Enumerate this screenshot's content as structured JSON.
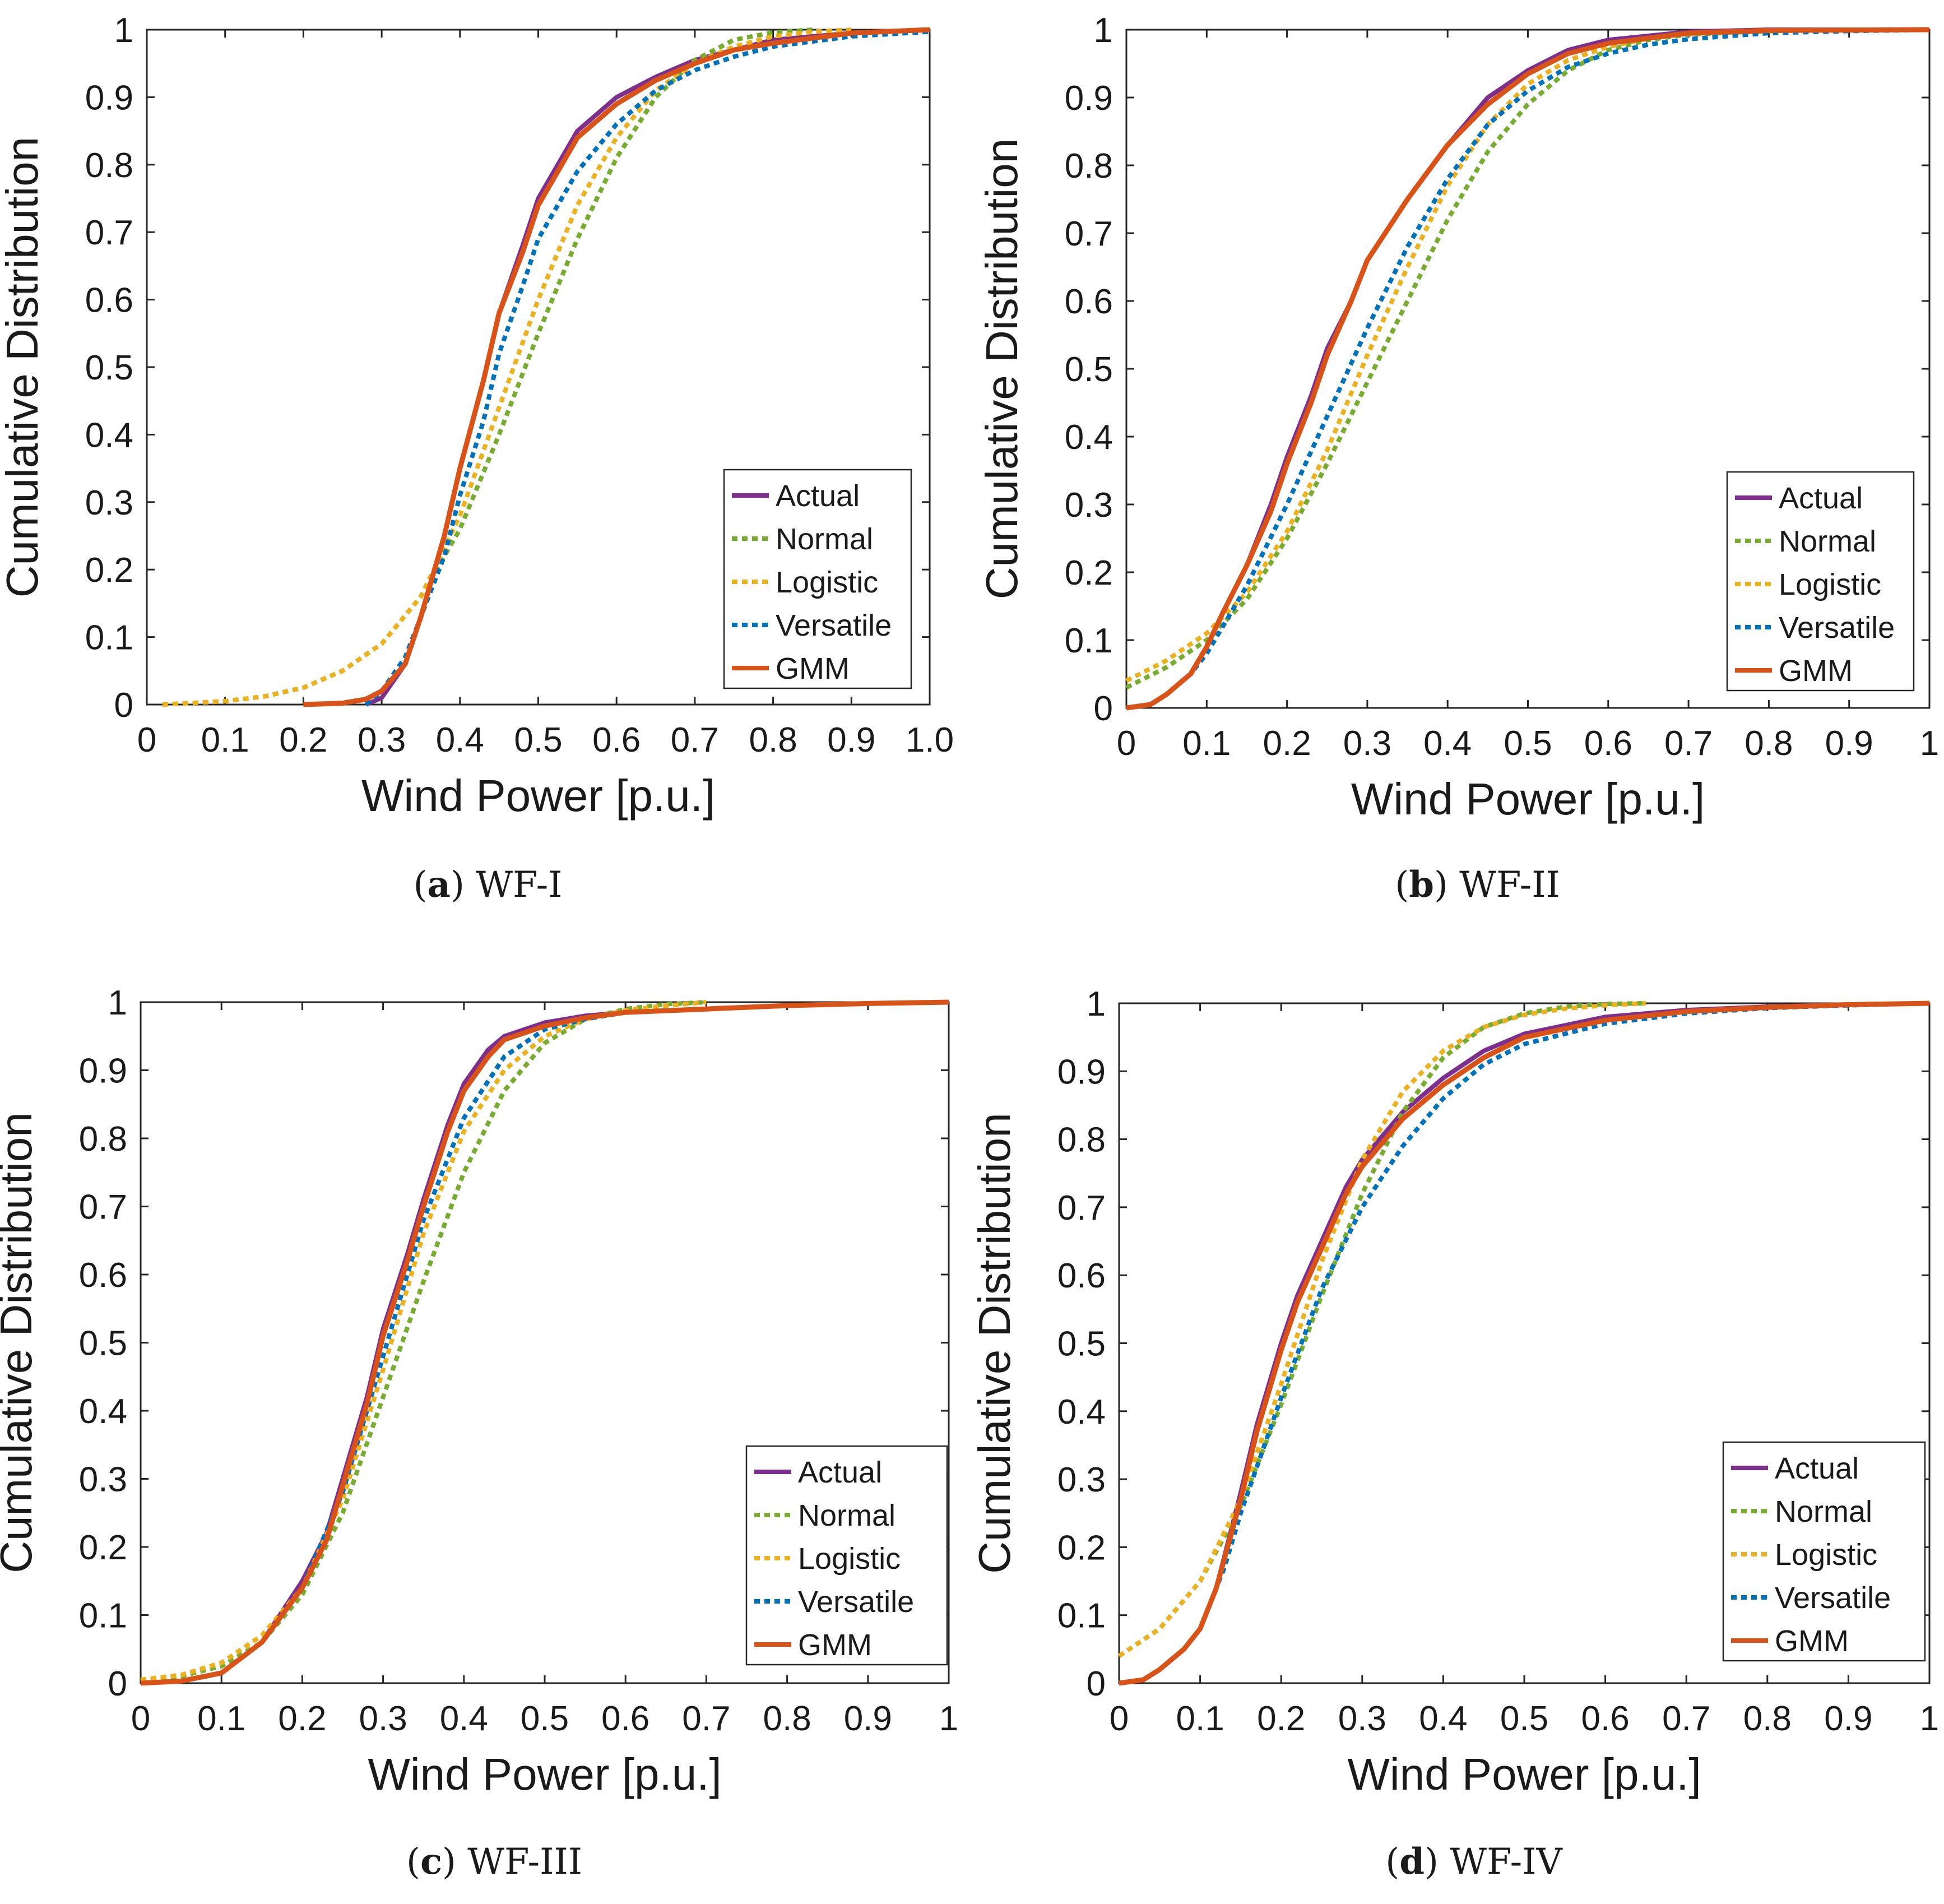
{
  "colors": {
    "Actual": "#7E2F8E",
    "Normal": "#77AC30",
    "Logistic": "#EDB120",
    "Versatile": "#0072BD",
    "GMM": "#D95319"
  },
  "chart_data": [
    {
      "type": "line",
      "title": "",
      "caption_letter": "(a)",
      "caption_name": "WF-I",
      "xlabel": "Wind Power [p.u.]",
      "ylabel": "Cumulative Distribution",
      "xlim": [
        0,
        1
      ],
      "ylim": [
        0,
        1
      ],
      "xticks": [
        "0",
        "0.1",
        "0.2",
        "0.3",
        "0.4",
        "0.5",
        "0.6",
        "0.7",
        "0.8",
        "0.9",
        "1.0"
      ],
      "yticks": [
        "0",
        "0.1",
        "0.2",
        "0.3",
        "0.4",
        "0.5",
        "0.6",
        "0.7",
        "0.8",
        "0.9",
        "1"
      ],
      "legend_position": "bottom-right",
      "grid": false,
      "series": [
        {
          "name": "Actual",
          "style": "solid",
          "x": [
            0.28,
            0.3,
            0.33,
            0.35,
            0.38,
            0.4,
            0.43,
            0.45,
            0.48,
            0.5,
            0.53,
            0.55,
            0.58,
            0.6,
            0.65,
            0.7,
            0.75,
            0.8,
            0.9,
            1.0
          ],
          "y": [
            0.0,
            0.01,
            0.06,
            0.13,
            0.25,
            0.35,
            0.48,
            0.58,
            0.68,
            0.75,
            0.81,
            0.85,
            0.88,
            0.9,
            0.93,
            0.955,
            0.97,
            0.985,
            0.995,
            1.0
          ]
        },
        {
          "name": "Normal",
          "style": "dotted",
          "x": [
            0.02,
            0.1,
            0.15,
            0.2,
            0.25,
            0.3,
            0.35,
            0.4,
            0.45,
            0.5,
            0.55,
            0.6,
            0.65,
            0.7,
            0.75,
            0.8,
            0.85
          ],
          "y": [
            0.0,
            0.005,
            0.012,
            0.025,
            0.05,
            0.09,
            0.16,
            0.26,
            0.4,
            0.55,
            0.69,
            0.81,
            0.9,
            0.955,
            0.985,
            0.996,
            1.0
          ]
        },
        {
          "name": "Logistic",
          "style": "dotted",
          "x": [
            0.02,
            0.1,
            0.15,
            0.2,
            0.25,
            0.3,
            0.35,
            0.4,
            0.45,
            0.5,
            0.55,
            0.6,
            0.65,
            0.7,
            0.75,
            0.8,
            0.85,
            0.9
          ],
          "y": [
            0.0,
            0.005,
            0.012,
            0.025,
            0.05,
            0.09,
            0.16,
            0.28,
            0.44,
            0.6,
            0.74,
            0.84,
            0.91,
            0.95,
            0.975,
            0.99,
            0.997,
            1.0
          ]
        },
        {
          "name": "Versatile",
          "style": "dotted",
          "x": [
            0.28,
            0.3,
            0.33,
            0.35,
            0.38,
            0.4,
            0.43,
            0.45,
            0.48,
            0.5,
            0.55,
            0.6,
            0.65,
            0.7,
            0.75,
            0.8,
            0.9,
            1.0
          ],
          "y": [
            0.0,
            0.02,
            0.07,
            0.13,
            0.22,
            0.31,
            0.42,
            0.52,
            0.62,
            0.69,
            0.79,
            0.86,
            0.91,
            0.94,
            0.96,
            0.975,
            0.99,
            0.997
          ]
        },
        {
          "name": "GMM",
          "style": "solid",
          "x": [
            0.2,
            0.25,
            0.28,
            0.3,
            0.33,
            0.35,
            0.38,
            0.4,
            0.43,
            0.45,
            0.48,
            0.5,
            0.53,
            0.55,
            0.58,
            0.6,
            0.65,
            0.7,
            0.75,
            0.8,
            0.9,
            1.0
          ],
          "y": [
            0.0,
            0.002,
            0.008,
            0.02,
            0.06,
            0.13,
            0.25,
            0.35,
            0.48,
            0.58,
            0.67,
            0.74,
            0.8,
            0.84,
            0.87,
            0.89,
            0.925,
            0.95,
            0.97,
            0.98,
            0.995,
            1.0
          ]
        }
      ]
    },
    {
      "type": "line",
      "title": "",
      "caption_letter": "(b)",
      "caption_name": "WF-II",
      "xlabel": "Wind Power [p.u.]",
      "ylabel": "Cumulative Distribution",
      "xlim": [
        0,
        1
      ],
      "ylim": [
        0,
        1
      ],
      "xticks": [
        "0",
        "0.1",
        "0.2",
        "0.3",
        "0.4",
        "0.5",
        "0.6",
        "0.7",
        "0.8",
        "0.9",
        "1"
      ],
      "yticks": [
        "0",
        "0.1",
        "0.2",
        "0.3",
        "0.4",
        "0.5",
        "0.6",
        "0.7",
        "0.8",
        "0.9",
        "1"
      ],
      "legend_position": "bottom-right",
      "grid": false,
      "series": [
        {
          "name": "Actual",
          "style": "solid",
          "x": [
            0.0,
            0.03,
            0.05,
            0.08,
            0.1,
            0.12,
            0.15,
            0.18,
            0.2,
            0.23,
            0.25,
            0.28,
            0.3,
            0.35,
            0.4,
            0.45,
            0.5,
            0.55,
            0.6,
            0.7,
            0.8,
            1.0
          ],
          "y": [
            0.0,
            0.005,
            0.02,
            0.05,
            0.09,
            0.14,
            0.21,
            0.3,
            0.37,
            0.46,
            0.53,
            0.6,
            0.66,
            0.75,
            0.83,
            0.9,
            0.94,
            0.97,
            0.985,
            0.997,
            1.0,
            1.0
          ]
        },
        {
          "name": "Normal",
          "style": "dotted",
          "x": [
            0.0,
            0.05,
            0.1,
            0.15,
            0.2,
            0.25,
            0.3,
            0.35,
            0.4,
            0.45,
            0.5,
            0.55,
            0.6,
            0.65,
            0.7,
            0.8,
            0.9,
            1.0
          ],
          "y": [
            0.03,
            0.06,
            0.1,
            0.16,
            0.25,
            0.36,
            0.48,
            0.6,
            0.72,
            0.82,
            0.89,
            0.94,
            0.97,
            0.985,
            0.993,
            0.998,
            1.0,
            1.0
          ]
        },
        {
          "name": "Logistic",
          "style": "dotted",
          "x": [
            0.0,
            0.05,
            0.1,
            0.15,
            0.2,
            0.25,
            0.3,
            0.35,
            0.4,
            0.45,
            0.5,
            0.55,
            0.6,
            0.65,
            0.7,
            0.8,
            1.0
          ],
          "y": [
            0.04,
            0.07,
            0.11,
            0.17,
            0.26,
            0.38,
            0.52,
            0.65,
            0.77,
            0.86,
            0.92,
            0.955,
            0.975,
            0.987,
            0.994,
            0.998,
            1.0
          ]
        },
        {
          "name": "Versatile",
          "style": "dotted",
          "x": [
            0.0,
            0.03,
            0.05,
            0.08,
            0.1,
            0.15,
            0.2,
            0.25,
            0.3,
            0.35,
            0.4,
            0.45,
            0.5,
            0.55,
            0.6,
            0.65,
            0.7,
            0.8,
            0.9,
            1.0
          ],
          "y": [
            0.0,
            0.005,
            0.02,
            0.05,
            0.08,
            0.18,
            0.3,
            0.43,
            0.56,
            0.68,
            0.78,
            0.86,
            0.91,
            0.945,
            0.965,
            0.978,
            0.986,
            0.995,
            0.998,
            1.0
          ]
        },
        {
          "name": "GMM",
          "style": "solid",
          "x": [
            0.0,
            0.03,
            0.05,
            0.08,
            0.1,
            0.12,
            0.15,
            0.18,
            0.2,
            0.23,
            0.25,
            0.28,
            0.3,
            0.35,
            0.4,
            0.45,
            0.5,
            0.55,
            0.6,
            0.7,
            0.8,
            1.0
          ],
          "y": [
            0.0,
            0.005,
            0.02,
            0.05,
            0.09,
            0.14,
            0.21,
            0.29,
            0.36,
            0.45,
            0.52,
            0.6,
            0.66,
            0.75,
            0.83,
            0.89,
            0.935,
            0.965,
            0.98,
            0.995,
            0.999,
            1.0
          ]
        }
      ]
    },
    {
      "type": "line",
      "title": "",
      "caption_letter": "(c)",
      "caption_name": "WF-III",
      "xlabel": "Wind Power [p.u.]",
      "ylabel": "Cumulative Distribution",
      "xlim": [
        0,
        1
      ],
      "ylim": [
        0,
        1
      ],
      "xticks": [
        "0",
        "0.1",
        "0.2",
        "0.3",
        "0.4",
        "0.5",
        "0.6",
        "0.7",
        "0.8",
        "0.9",
        "1"
      ],
      "yticks": [
        "0",
        "0.1",
        "0.2",
        "0.3",
        "0.4",
        "0.5",
        "0.6",
        "0.7",
        "0.8",
        "0.9",
        "1"
      ],
      "legend_position": "bottom-right",
      "grid": false,
      "series": [
        {
          "name": "Actual",
          "style": "solid",
          "x": [
            0.0,
            0.05,
            0.1,
            0.15,
            0.2,
            0.23,
            0.25,
            0.28,
            0.3,
            0.33,
            0.35,
            0.38,
            0.4,
            0.43,
            0.45,
            0.5,
            0.55,
            0.6,
            0.7,
            0.8,
            0.9,
            1.0
          ],
          "y": [
            0.0,
            0.003,
            0.015,
            0.06,
            0.15,
            0.22,
            0.3,
            0.42,
            0.52,
            0.63,
            0.71,
            0.82,
            0.88,
            0.93,
            0.95,
            0.97,
            0.98,
            0.985,
            0.99,
            0.995,
            0.998,
            1.0
          ]
        },
        {
          "name": "Normal",
          "style": "dotted",
          "x": [
            0.0,
            0.05,
            0.1,
            0.15,
            0.2,
            0.25,
            0.3,
            0.35,
            0.4,
            0.45,
            0.5,
            0.55,
            0.6,
            0.65,
            0.7
          ],
          "y": [
            0.003,
            0.01,
            0.025,
            0.06,
            0.13,
            0.25,
            0.42,
            0.59,
            0.75,
            0.87,
            0.94,
            0.975,
            0.99,
            0.997,
            1.0
          ]
        },
        {
          "name": "Logistic",
          "style": "dotted",
          "x": [
            0.0,
            0.05,
            0.1,
            0.15,
            0.2,
            0.25,
            0.3,
            0.35,
            0.4,
            0.45,
            0.5,
            0.55,
            0.6,
            0.65,
            0.7
          ],
          "y": [
            0.005,
            0.012,
            0.03,
            0.07,
            0.14,
            0.27,
            0.46,
            0.66,
            0.81,
            0.9,
            0.95,
            0.975,
            0.988,
            0.995,
            1.0
          ]
        },
        {
          "name": "Versatile",
          "style": "dotted",
          "x": [
            0.0,
            0.05,
            0.1,
            0.15,
            0.2,
            0.25,
            0.3,
            0.35,
            0.4,
            0.45,
            0.5,
            0.55,
            0.6,
            0.7,
            0.8,
            0.9,
            1.0
          ],
          "y": [
            0.0,
            0.003,
            0.015,
            0.06,
            0.14,
            0.28,
            0.48,
            0.68,
            0.83,
            0.92,
            0.96,
            0.975,
            0.985,
            0.99,
            0.995,
            0.998,
            1.0
          ]
        },
        {
          "name": "GMM",
          "style": "solid",
          "x": [
            0.0,
            0.05,
            0.1,
            0.15,
            0.2,
            0.23,
            0.25,
            0.28,
            0.3,
            0.33,
            0.35,
            0.38,
            0.4,
            0.43,
            0.45,
            0.5,
            0.55,
            0.6,
            0.7,
            0.8,
            0.9,
            1.0
          ],
          "y": [
            0.0,
            0.003,
            0.015,
            0.06,
            0.14,
            0.21,
            0.29,
            0.41,
            0.51,
            0.62,
            0.7,
            0.81,
            0.87,
            0.92,
            0.945,
            0.965,
            0.977,
            0.985,
            0.99,
            0.995,
            0.998,
            1.0
          ]
        }
      ]
    },
    {
      "type": "line",
      "title": "",
      "caption_letter": "(d)",
      "caption_name": "WF-IV",
      "xlabel": "Wind Power [p.u.]",
      "ylabel": "Cumulative Distribution",
      "xlim": [
        0,
        1
      ],
      "ylim": [
        0,
        1
      ],
      "xticks": [
        "0",
        "0.1",
        "0.2",
        "0.3",
        "0.4",
        "0.5",
        "0.6",
        "0.7",
        "0.8",
        "0.9",
        "1"
      ],
      "yticks": [
        "0",
        "0.1",
        "0.2",
        "0.3",
        "0.4",
        "0.5",
        "0.6",
        "0.7",
        "0.8",
        "0.9",
        "1"
      ],
      "legend_position": "bottom-right",
      "grid": false,
      "series": [
        {
          "name": "Actual",
          "style": "solid",
          "x": [
            0.0,
            0.03,
            0.05,
            0.08,
            0.1,
            0.12,
            0.15,
            0.17,
            0.2,
            0.22,
            0.25,
            0.28,
            0.3,
            0.35,
            0.4,
            0.45,
            0.5,
            0.6,
            0.7,
            0.8,
            0.9,
            1.0
          ],
          "y": [
            0.0,
            0.005,
            0.02,
            0.05,
            0.08,
            0.14,
            0.28,
            0.38,
            0.5,
            0.57,
            0.65,
            0.73,
            0.77,
            0.84,
            0.89,
            0.93,
            0.955,
            0.98,
            0.99,
            0.995,
            0.998,
            1.0
          ]
        },
        {
          "name": "Normal",
          "style": "dotted",
          "x": [
            0.0,
            0.05,
            0.1,
            0.15,
            0.2,
            0.25,
            0.3,
            0.35,
            0.4,
            0.45,
            0.5,
            0.55,
            0.6,
            0.65
          ],
          "y": [
            0.04,
            0.08,
            0.15,
            0.26,
            0.41,
            0.57,
            0.72,
            0.84,
            0.92,
            0.965,
            0.985,
            0.995,
            0.999,
            1.0
          ]
        },
        {
          "name": "Logistic",
          "style": "dotted",
          "x": [
            0.0,
            0.05,
            0.1,
            0.15,
            0.2,
            0.25,
            0.3,
            0.35,
            0.4,
            0.45,
            0.5,
            0.55,
            0.6,
            0.65
          ],
          "y": [
            0.04,
            0.08,
            0.15,
            0.27,
            0.44,
            0.62,
            0.77,
            0.87,
            0.93,
            0.965,
            0.983,
            0.992,
            0.997,
            1.0
          ]
        },
        {
          "name": "Versatile",
          "style": "dotted",
          "x": [
            0.0,
            0.03,
            0.05,
            0.08,
            0.1,
            0.13,
            0.15,
            0.2,
            0.25,
            0.3,
            0.35,
            0.4,
            0.45,
            0.5,
            0.6,
            0.7,
            0.8,
            0.9,
            1.0
          ],
          "y": [
            0.0,
            0.005,
            0.02,
            0.05,
            0.08,
            0.17,
            0.25,
            0.42,
            0.58,
            0.7,
            0.79,
            0.86,
            0.91,
            0.94,
            0.97,
            0.985,
            0.993,
            0.997,
            1.0
          ]
        },
        {
          "name": "GMM",
          "style": "solid",
          "x": [
            0.0,
            0.03,
            0.05,
            0.08,
            0.1,
            0.12,
            0.15,
            0.17,
            0.2,
            0.22,
            0.25,
            0.28,
            0.3,
            0.35,
            0.4,
            0.45,
            0.5,
            0.6,
            0.7,
            0.8,
            0.9,
            1.0
          ],
          "y": [
            0.0,
            0.005,
            0.02,
            0.05,
            0.08,
            0.14,
            0.27,
            0.37,
            0.49,
            0.56,
            0.64,
            0.72,
            0.76,
            0.83,
            0.88,
            0.92,
            0.95,
            0.975,
            0.988,
            0.994,
            0.998,
            1.0
          ]
        }
      ]
    }
  ]
}
